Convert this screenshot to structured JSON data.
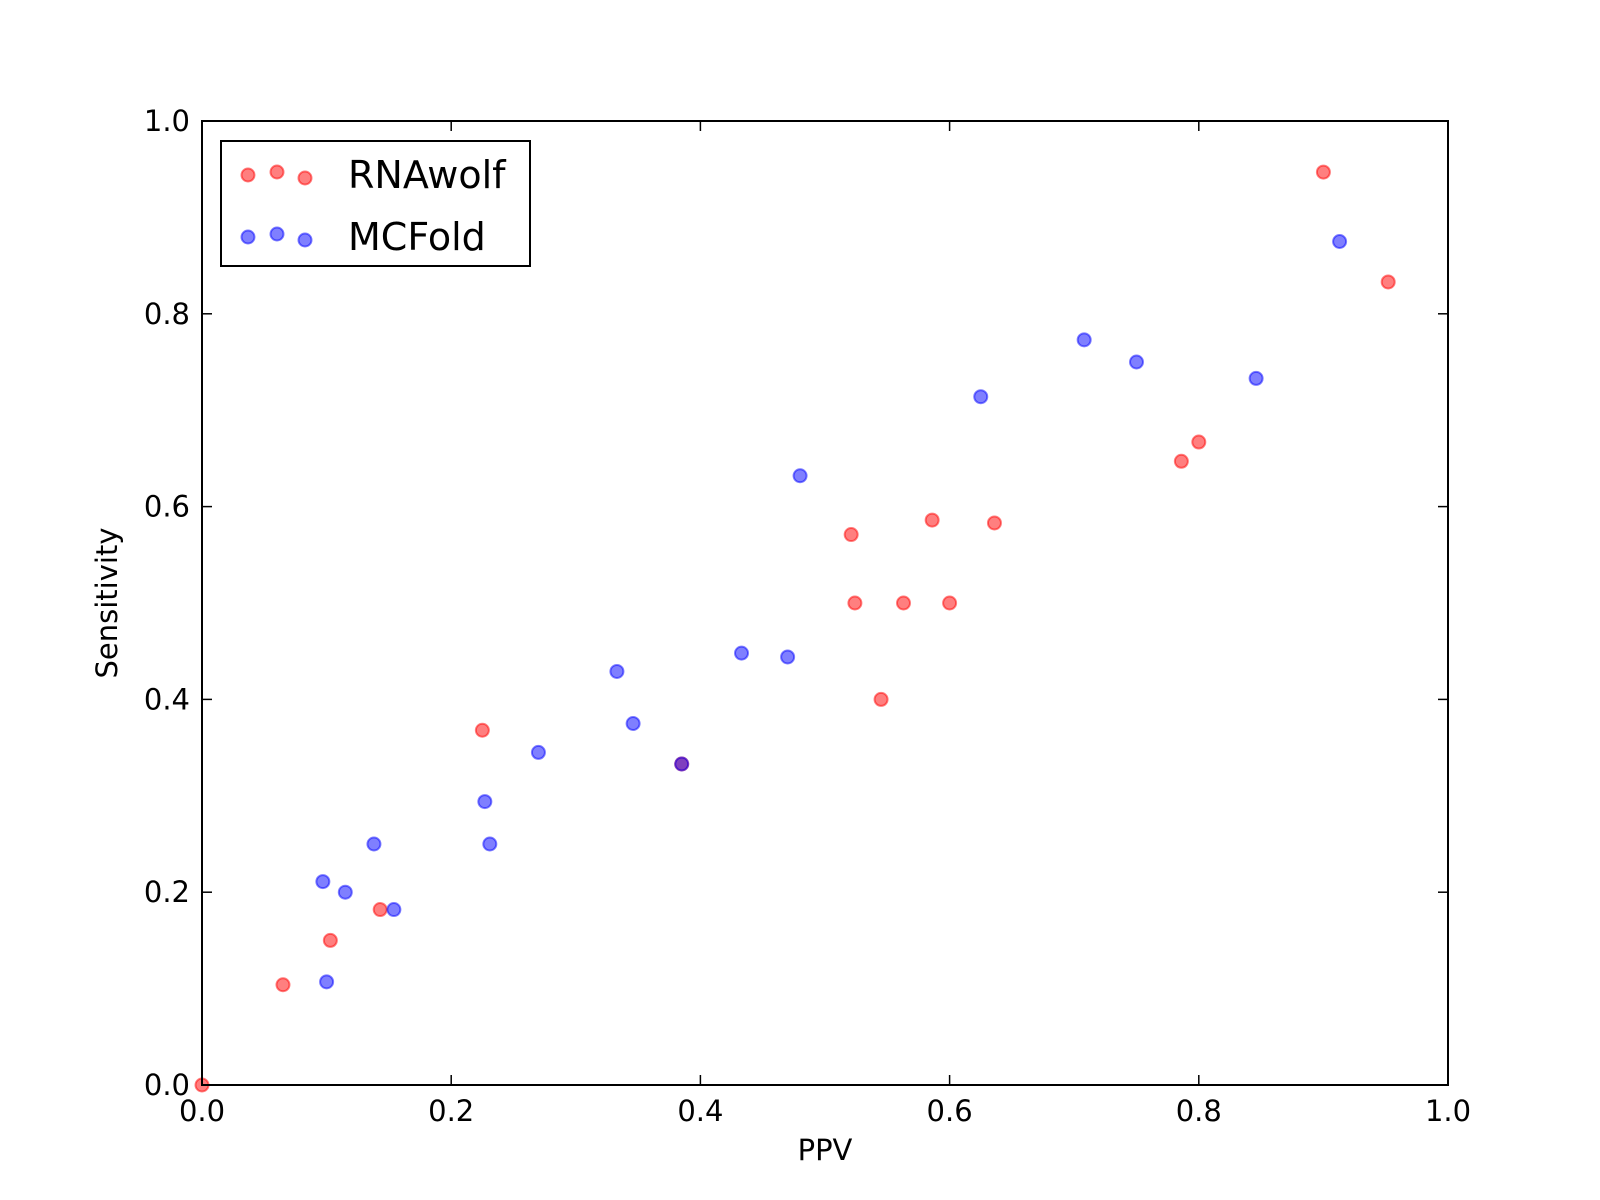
{
  "chart_data": {
    "type": "scatter",
    "title": "",
    "xlabel": "PPV",
    "ylabel": "Sensitivity",
    "xlim": [
      0.0,
      1.0
    ],
    "ylim": [
      0.0,
      1.0
    ],
    "x_ticks": [
      0.0,
      0.2,
      0.4,
      0.6,
      0.8,
      1.0
    ],
    "y_ticks": [
      0.0,
      0.2,
      0.4,
      0.6,
      0.8,
      1.0
    ],
    "x_tick_labels": [
      "0.0",
      "0.2",
      "0.4",
      "0.6",
      "0.8",
      "1.0"
    ],
    "y_tick_labels": [
      "0.0",
      "0.2",
      "0.4",
      "0.6",
      "0.8",
      "1.0"
    ],
    "grid": false,
    "legend_position": "top-left",
    "series": [
      {
        "name": "RNAwolf",
        "color": "#ff0000",
        "points": [
          {
            "x": 0.0,
            "y": 0.0
          },
          {
            "x": 0.065,
            "y": 0.104
          },
          {
            "x": 0.103,
            "y": 0.15
          },
          {
            "x": 0.143,
            "y": 0.182
          },
          {
            "x": 0.225,
            "y": 0.368
          },
          {
            "x": 0.385,
            "y": 0.333
          },
          {
            "x": 0.521,
            "y": 0.571
          },
          {
            "x": 0.524,
            "y": 0.5
          },
          {
            "x": 0.545,
            "y": 0.4
          },
          {
            "x": 0.563,
            "y": 0.5
          },
          {
            "x": 0.586,
            "y": 0.586
          },
          {
            "x": 0.6,
            "y": 0.5
          },
          {
            "x": 0.636,
            "y": 0.583
          },
          {
            "x": 0.786,
            "y": 0.647
          },
          {
            "x": 0.8,
            "y": 0.667
          },
          {
            "x": 0.9,
            "y": 0.947
          },
          {
            "x": 0.952,
            "y": 0.833
          }
        ]
      },
      {
        "name": "MCFold",
        "color": "#0000ff",
        "points": [
          {
            "x": 0.097,
            "y": 0.211
          },
          {
            "x": 0.1,
            "y": 0.107
          },
          {
            "x": 0.115,
            "y": 0.2
          },
          {
            "x": 0.138,
            "y": 0.25
          },
          {
            "x": 0.154,
            "y": 0.182
          },
          {
            "x": 0.227,
            "y": 0.294
          },
          {
            "x": 0.231,
            "y": 0.25
          },
          {
            "x": 0.27,
            "y": 0.345
          },
          {
            "x": 0.333,
            "y": 0.429
          },
          {
            "x": 0.346,
            "y": 0.375
          },
          {
            "x": 0.385,
            "y": 0.333
          },
          {
            "x": 0.433,
            "y": 0.448
          },
          {
            "x": 0.47,
            "y": 0.444
          },
          {
            "x": 0.48,
            "y": 0.632
          },
          {
            "x": 0.625,
            "y": 0.714
          },
          {
            "x": 0.708,
            "y": 0.773
          },
          {
            "x": 0.75,
            "y": 0.75
          },
          {
            "x": 0.846,
            "y": 0.733
          },
          {
            "x": 0.913,
            "y": 0.875
          }
        ]
      }
    ]
  }
}
